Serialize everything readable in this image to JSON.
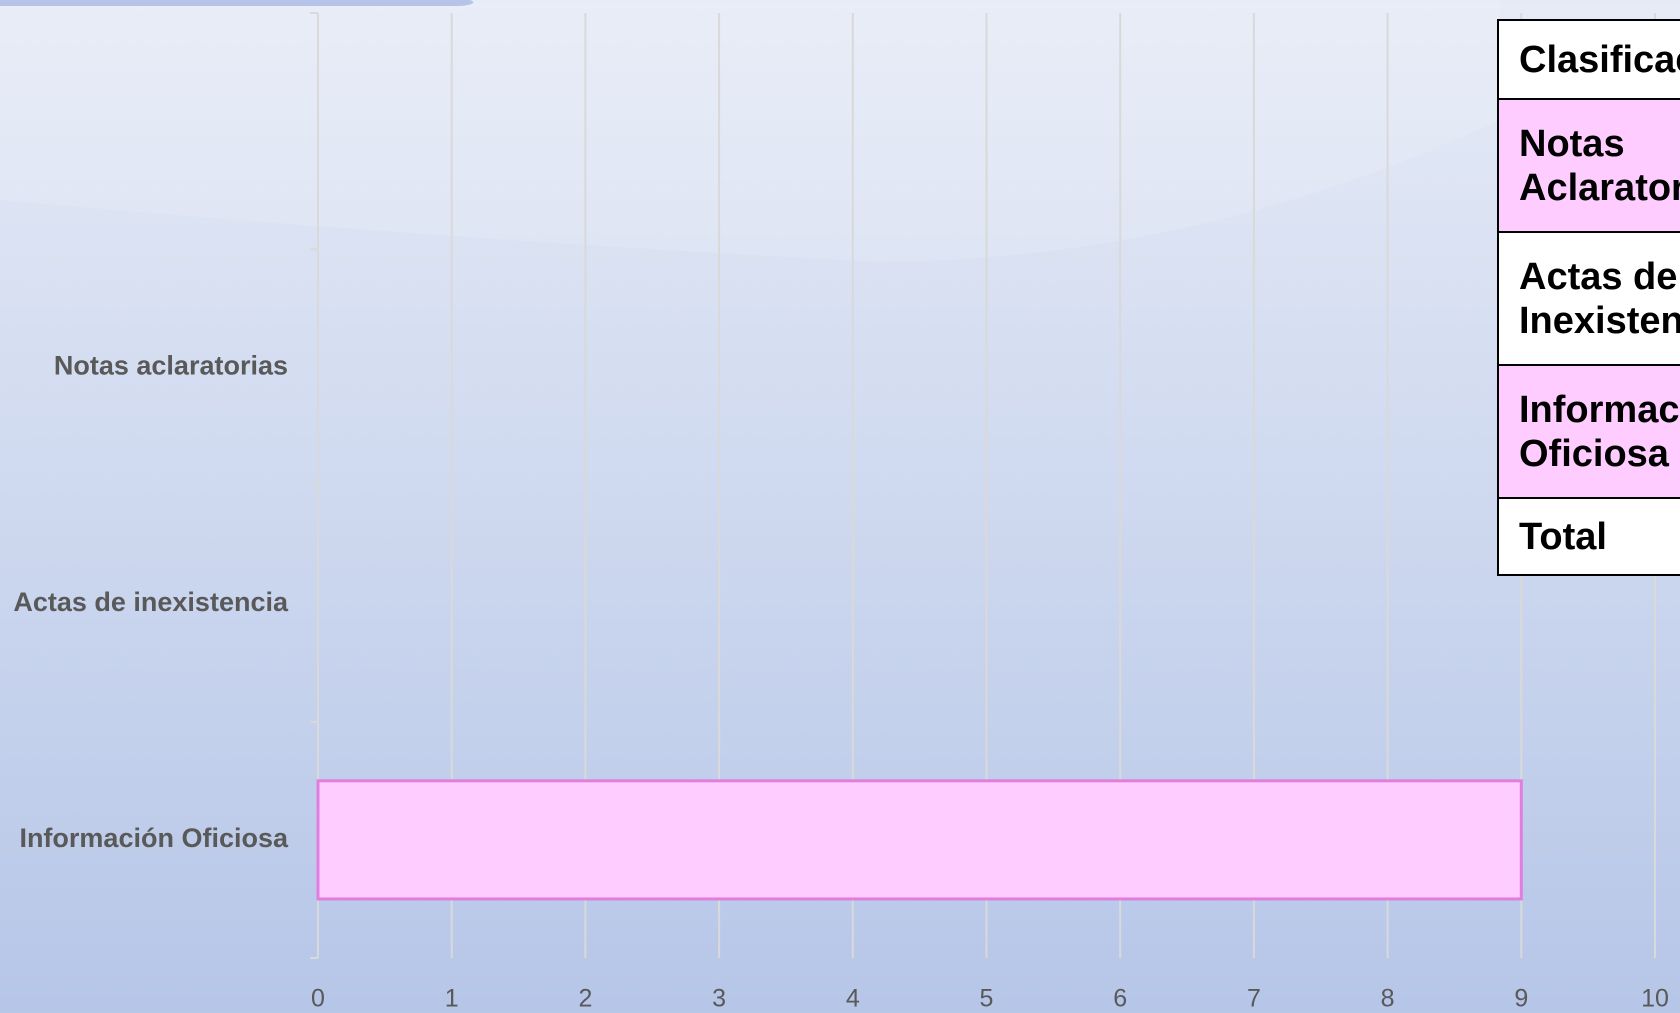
{
  "chart_data": {
    "type": "barh",
    "categories": [
      null,
      "Notas aclaratorias",
      "Actas de inexistencia",
      "Información Oficiosa"
    ],
    "values": [
      null,
      0,
      0,
      9
    ],
    "color": "#ffccff",
    "edge_color": "#e07ee0",
    "xlim": [
      0,
      10
    ],
    "xticks": [
      0,
      1,
      2,
      3,
      4,
      5,
      6,
      7,
      8,
      9,
      10
    ],
    "grid": true
  },
  "table": {
    "rows": [
      [
        "Clasificación"
      ],
      [
        "Notas Aclaratorias"
      ],
      [
        "Actas de Inexistencia"
      ],
      [
        "Información Oficiosa"
      ],
      [
        "Total"
      ]
    ]
  }
}
